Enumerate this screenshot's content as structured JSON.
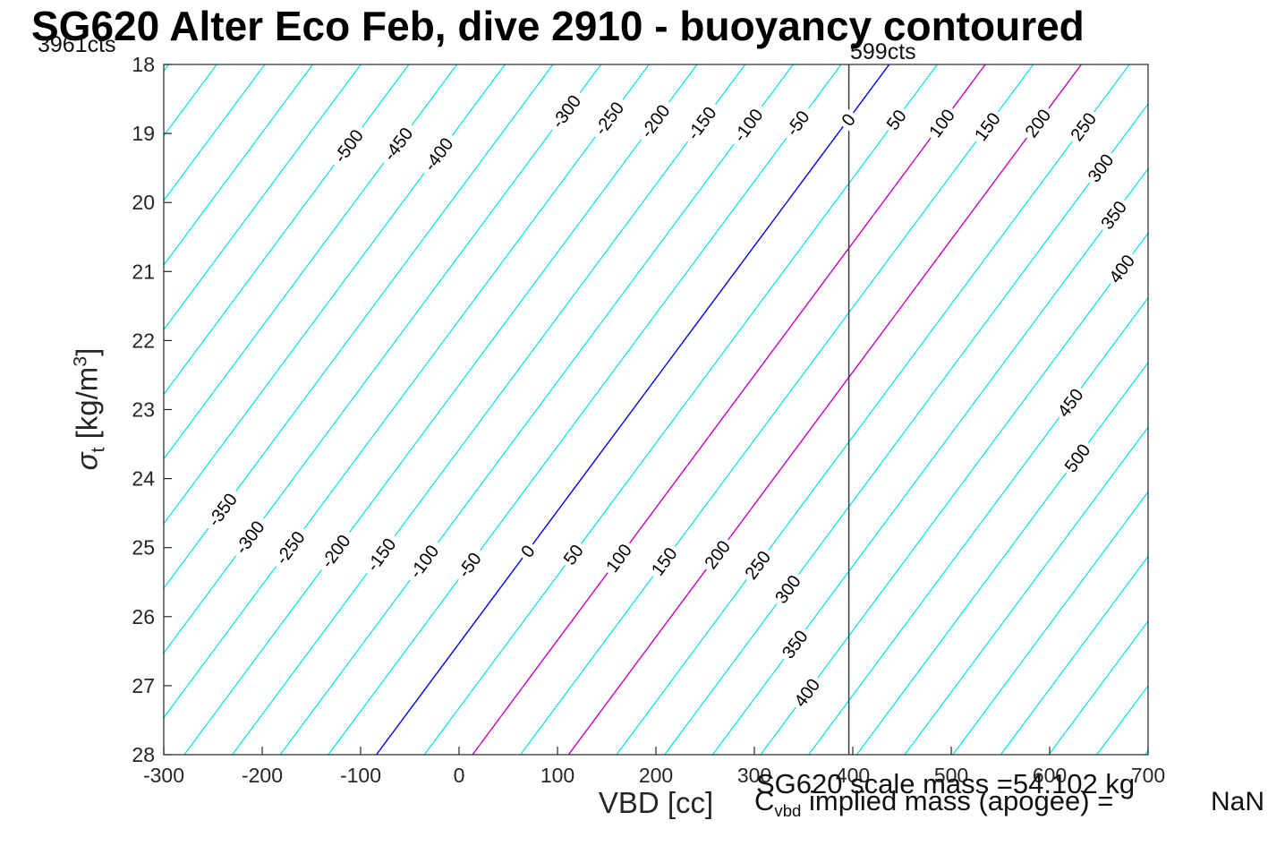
{
  "title": "SG620 Alter Eco Feb, dive 2910 - buoyancy contoured",
  "annotations": {
    "top_left_cts": "3961cts",
    "vline_cts": "599cts",
    "scale_mass": "SG620 scale mass =54.102 kg",
    "implied_prefix": "C",
    "implied_sub": "vbd",
    "implied_rest": " implied mass (apogee) = ",
    "implied_value": "NaN"
  },
  "axes": {
    "xlabel": "VBD [cc]",
    "x_ticks": [
      "-300",
      "-200",
      "-100",
      "0",
      "100",
      "200",
      "300",
      "400",
      "500",
      "600",
      "700"
    ],
    "y_ticks": [
      "18",
      "19",
      "20",
      "21",
      "22",
      "23",
      "24",
      "25",
      "26",
      "27",
      "28"
    ],
    "ylabel": {
      "sigma": "σ",
      "sub": "t",
      "units_open": " [kg/m",
      "sup": "3",
      "units_close": "]"
    }
  },
  "chart_data": {
    "type": "contour",
    "title": "SG620 Alter Eco Feb, dive 2910 - buoyancy contoured",
    "xlabel": "VBD [cc]",
    "ylabel": "sigma_t [kg/m^3]",
    "xlim": [
      -300,
      700
    ],
    "ylim": [
      18,
      28
    ],
    "y_axis_reversed": true,
    "grid": false,
    "levels_min": -750,
    "levels_max": 800,
    "levels_step": 50,
    "labeled_levels": [
      -500,
      -450,
      -400,
      -350,
      -300,
      -250,
      -200,
      -150,
      -100,
      -50,
      0,
      50,
      100,
      150,
      200,
      250,
      300,
      350,
      400,
      450,
      500
    ],
    "model": {
      "description": "buoyancy contour line: vbd_cc = a_cc + b_cc_per_unit*level + c_cc_per_sigma*(sigma_t - sigma_ref)",
      "a_cc": 437,
      "b_cc_per_unit": 0.976,
      "c_cc_per_sigma": -52.1,
      "sigma_ref": 18
    },
    "colors": {
      "line": "#00E2E2",
      "zero": "#0000EE",
      "magenta": "#C800C8",
      "axis": "#262626"
    },
    "magenta_levels": [
      100,
      200
    ],
    "vline": {
      "x_cc": 396,
      "color": "#3c3c3c"
    },
    "labels": [
      {
        "level": -500,
        "sigma": 19.18
      },
      {
        "level": -450,
        "sigma": 19.15
      },
      {
        "level": -400,
        "sigma": 19.3
      },
      {
        "level": -300,
        "sigma": 18.68
      },
      {
        "level": -250,
        "sigma": 18.78
      },
      {
        "level": -200,
        "sigma": 18.82
      },
      {
        "level": -150,
        "sigma": 18.85
      },
      {
        "level": -100,
        "sigma": 18.88
      },
      {
        "level": -50,
        "sigma": 18.85
      },
      {
        "level": 0,
        "sigma": 18.8
      },
      {
        "level": 50,
        "sigma": 18.8
      },
      {
        "level": 100,
        "sigma": 18.85
      },
      {
        "level": 150,
        "sigma": 18.9
      },
      {
        "level": 200,
        "sigma": 18.85
      },
      {
        "level": 250,
        "sigma": 18.9
      },
      {
        "level": 300,
        "sigma": 19.5
      },
      {
        "level": 350,
        "sigma": 20.18
      },
      {
        "level": 400,
        "sigma": 20.96
      },
      {
        "level": 450,
        "sigma": 22.9
      },
      {
        "level": 500,
        "sigma": 23.7
      },
      {
        "level": -350,
        "sigma": 24.45
      },
      {
        "level": -300,
        "sigma": 24.85
      },
      {
        "level": -250,
        "sigma": 25.0
      },
      {
        "level": -200,
        "sigma": 25.05
      },
      {
        "level": -150,
        "sigma": 25.1
      },
      {
        "level": -100,
        "sigma": 25.2
      },
      {
        "level": -50,
        "sigma": 25.25
      },
      {
        "level": 0,
        "sigma": 25.05
      },
      {
        "level": 50,
        "sigma": 25.1
      },
      {
        "level": 100,
        "sigma": 25.15
      },
      {
        "level": 150,
        "sigma": 25.2
      },
      {
        "level": 200,
        "sigma": 25.1
      },
      {
        "level": 250,
        "sigma": 25.25
      },
      {
        "level": 300,
        "sigma": 25.6
      },
      {
        "level": 350,
        "sigma": 26.4
      },
      {
        "level": 400,
        "sigma": 27.1
      }
    ]
  }
}
